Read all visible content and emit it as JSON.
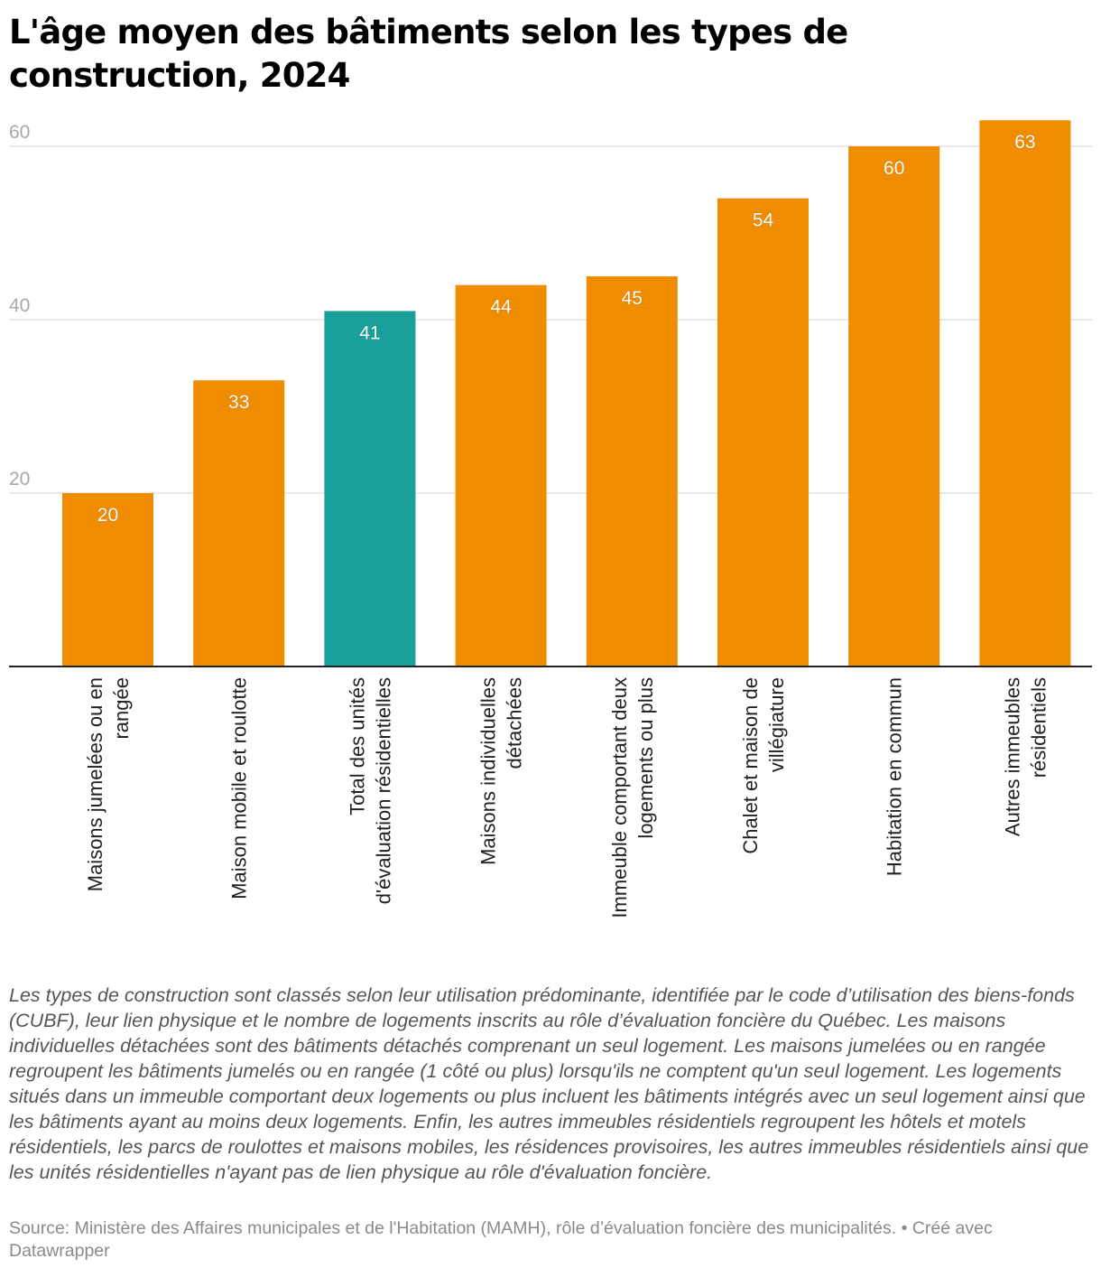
{
  "title": "L'âge moyen des bâtiments selon les types de construction, 2024",
  "notes": "Les types de construction sont classés selon leur utilisation prédominante, identifiée par le code d’utilisation des biens-fonds (CUBF), leur lien physique et le nombre de logements inscrits au rôle d’évaluation foncière du Québec. Les maisons individuelles détachées sont des bâtiments détachés comprenant un seul logement. Les maisons jumelées ou en rangée regroupent les bâtiments jumelés ou en rangée (1 côté ou plus) lorsqu'ils ne comptent qu'un seul logement. Les logements situés dans un immeuble comportant deux logements ou plus incluent les bâtiments intégrés avec un seul logement ainsi que les bâtiments ayant au moins deux logements. Enfin, les autres immeubles résidentiels regroupent les hôtels et motels résidentiels, les parcs de roulottes et maisons mobiles, les résidences provisoires, les autres immeubles résidentiels ainsi que les unités résidentielles n'ayant pas de lien physique au rôle d'évaluation foncière.",
  "source": "Source: Ministère des Affaires municipales et de l'Habitation (MAMH), rôle d’évaluation foncière des municipalités. • Créé avec Datawrapper",
  "chart_data": {
    "type": "bar",
    "categories": [
      [
        "Maisons jumelées ou en",
        "rangée"
      ],
      [
        "Maison mobile et roulotte"
      ],
      [
        "Total des unités",
        "d'évaluation résidentielles"
      ],
      [
        "Maisons individuelles",
        "détachées"
      ],
      [
        "Immeuble comportant deux",
        "logements ou plus"
      ],
      [
        "Chalet et maison de",
        "villégiature"
      ],
      [
        "Habitation en commun"
      ],
      [
        "Autres immeubles",
        "résidentiels"
      ]
    ],
    "values": [
      20,
      33,
      41,
      44,
      45,
      54,
      60,
      63
    ],
    "value_labels": [
      "20",
      "33",
      "41",
      "44",
      "45",
      "54",
      "60",
      "63"
    ],
    "bar_colors": [
      "#f08c00",
      "#f08c00",
      "#19a09a",
      "#f08c00",
      "#f08c00",
      "#f08c00",
      "#f08c00",
      "#f08c00"
    ],
    "yticks": [
      20,
      40,
      60
    ],
    "ylim": [
      0,
      65
    ],
    "grid": true,
    "colors": {
      "bar": "#f08c00",
      "highlight": "#19a09a",
      "grid": "#e2e2e2",
      "axis": "#222222",
      "tick_label": "#a8a8a8"
    }
  }
}
